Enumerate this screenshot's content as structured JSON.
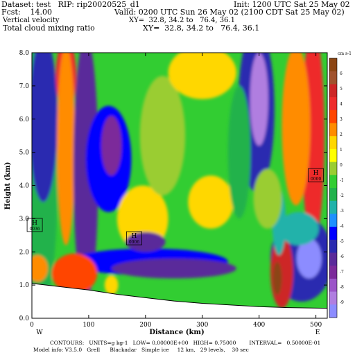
{
  "header": {
    "dataset": "Dataset: test   RIP: rip20020525_d1",
    "init": "Init: 1200 UTC Sat 25 May 02",
    "fcst": "Fcst:    14.00",
    "valid": "Valid: 0200 UTC Sun 26 May 02 (2100 CDT Sat 25 May 02)",
    "field1": "Vertical velocity",
    "xy1": "XY=  32.8, 34.2 to   76.4, 36.1",
    "field2": "Total cloud mixing ratio",
    "xy2": "XY=  32.8, 34.2 to   76.4, 36.1"
  },
  "footer": {
    "contours": "CONTOURS:   UNITS=g kg-1   LOW= 0.00000E+00   HIGH= 0.75000        INTERVAL=   0.50000E-01",
    "model": "Model info: V3.5.0   Grell      Blackadar   Simple ice     12 km,   29 levels,    30 sec"
  },
  "chart_data": {
    "type": "heatmap",
    "xlabel": "Distance (km)",
    "ylabel": "Height (km)",
    "xlim": [
      0,
      520
    ],
    "ylim": [
      0,
      8
    ],
    "x_ticks": [
      "0",
      "100",
      "200",
      "300",
      "400",
      "500"
    ],
    "x_tick_values": [
      0,
      100,
      200,
      300,
      400,
      500
    ],
    "y_ticks": [
      "0.0",
      "1.0",
      "2.0",
      "3.0",
      "4.0",
      "5.0",
      "6.0",
      "7.0",
      "8.0"
    ],
    "y_tick_values": [
      0,
      1,
      2,
      3,
      4,
      5,
      6,
      7,
      8
    ],
    "endpoints": {
      "left": "W",
      "right": "E"
    },
    "colorbar": {
      "units": "cm s-1",
      "labels": [
        "6",
        "5",
        "4",
        "3",
        "2",
        "1",
        "0",
        "-1",
        "-2",
        "-3",
        "-4",
        "-5",
        "-6",
        "-7",
        "-8",
        "-9"
      ],
      "colors": [
        "#8b4513",
        "#a0522d",
        "#cd2626",
        "#ee2c2c",
        "#ff4500",
        "#ff8c00",
        "#ffd700",
        "#ffff00",
        "#9acd32",
        "#32cd32",
        "#22b24c",
        "#20b2aa",
        "#1e90ff",
        "#0000ff",
        "#2a2ab0",
        "#5a2a9a",
        "#7b2a9a",
        "#9b55c8",
        "#b07ee0",
        "#8c8cff"
      ]
    },
    "annotations": [
      {
        "label": "H",
        "value": "0036",
        "x": 5,
        "y": 2.8
      },
      {
        "label": "H",
        "value": "0006",
        "x": 180,
        "y": 2.4
      },
      {
        "label": "H",
        "value": "0000",
        "x": 500,
        "y": 4.3
      }
    ],
    "terrain_height_km": [
      [
        0,
        1.05
      ],
      [
        50,
        0.95
      ],
      [
        100,
        0.85
      ],
      [
        150,
        0.72
      ],
      [
        200,
        0.62
      ],
      [
        250,
        0.52
      ],
      [
        300,
        0.45
      ],
      [
        350,
        0.4
      ],
      [
        400,
        0.35
      ],
      [
        450,
        0.32
      ],
      [
        520,
        0.3
      ]
    ],
    "cells": [
      {
        "x": 0,
        "y": 4,
        "rx": 45,
        "ry": 4.5,
        "v": -1.5
      },
      {
        "x": 20,
        "y": 6,
        "rx": 25,
        "ry": 2.5,
        "v": -5
      },
      {
        "x": 60,
        "y": 7.3,
        "rx": 18,
        "ry": 1.1,
        "v": 3.5
      },
      {
        "x": 60,
        "y": 5.2,
        "rx": 16,
        "ry": 3,
        "v": 2
      },
      {
        "x": 95,
        "y": 4.5,
        "rx": 22,
        "ry": 4,
        "v": -5.5
      },
      {
        "x": 135,
        "y": 4.8,
        "rx": 40,
        "ry": 1.6,
        "v": -4.5
      },
      {
        "x": 140,
        "y": 5.2,
        "rx": 18,
        "ry": 0.9,
        "v": -7
      },
      {
        "x": 195,
        "y": 3,
        "rx": 45,
        "ry": 1,
        "v": 1.5
      },
      {
        "x": 230,
        "y": 5.5,
        "rx": 40,
        "ry": 1.8,
        "v": 0
      },
      {
        "x": 315,
        "y": 3.5,
        "rx": 40,
        "ry": 0.8,
        "v": 1.5
      },
      {
        "x": 300,
        "y": 7.4,
        "rx": 60,
        "ry": 0.8,
        "v": 1
      },
      {
        "x": 205,
        "y": 1.7,
        "rx": 140,
        "ry": 0.4,
        "v": -4.5
      },
      {
        "x": 200,
        "y": 2.3,
        "rx": 35,
        "ry": 0.3,
        "v": -5.5
      },
      {
        "x": 250,
        "y": 1.5,
        "rx": 110,
        "ry": 0.3,
        "v": -6
      },
      {
        "x": 75,
        "y": 1.35,
        "rx": 40,
        "ry": 0.6,
        "v": 3
      },
      {
        "x": 10,
        "y": 1.5,
        "rx": 18,
        "ry": 0.4,
        "v": 2
      },
      {
        "x": 140,
        "y": 1,
        "rx": 12,
        "ry": 0.3,
        "v": 1.5
      },
      {
        "x": 395,
        "y": 6.3,
        "rx": 32,
        "ry": 2.5,
        "v": -5
      },
      {
        "x": 400,
        "y": 6.6,
        "rx": 16,
        "ry": 1.4,
        "v": -8
      },
      {
        "x": 365,
        "y": 5,
        "rx": 20,
        "ry": 2,
        "v": -2
      },
      {
        "x": 495,
        "y": 5.5,
        "rx": 20,
        "ry": 3.2,
        "v": 3.5
      },
      {
        "x": 465,
        "y": 5.8,
        "rx": 25,
        "ry": 2.4,
        "v": 2
      },
      {
        "x": 475,
        "y": 1.8,
        "rx": 55,
        "ry": 1.3,
        "v": -5
      },
      {
        "x": 488,
        "y": 1.8,
        "rx": 22,
        "ry": 0.6,
        "v": -9
      },
      {
        "x": 440,
        "y": 1.4,
        "rx": 20,
        "ry": 1.1,
        "v": 4.5
      },
      {
        "x": 432,
        "y": 1.2,
        "rx": 8,
        "ry": 0.5,
        "v": 6
      },
      {
        "x": 435,
        "y": 2.9,
        "rx": 12,
        "ry": 1,
        "v": -3
      },
      {
        "x": 415,
        "y": 3.6,
        "rx": 25,
        "ry": 0.9,
        "v": 0
      },
      {
        "x": 470,
        "y": 2.7,
        "rx": 35,
        "ry": 0.5,
        "v": -2.5
      }
    ]
  }
}
